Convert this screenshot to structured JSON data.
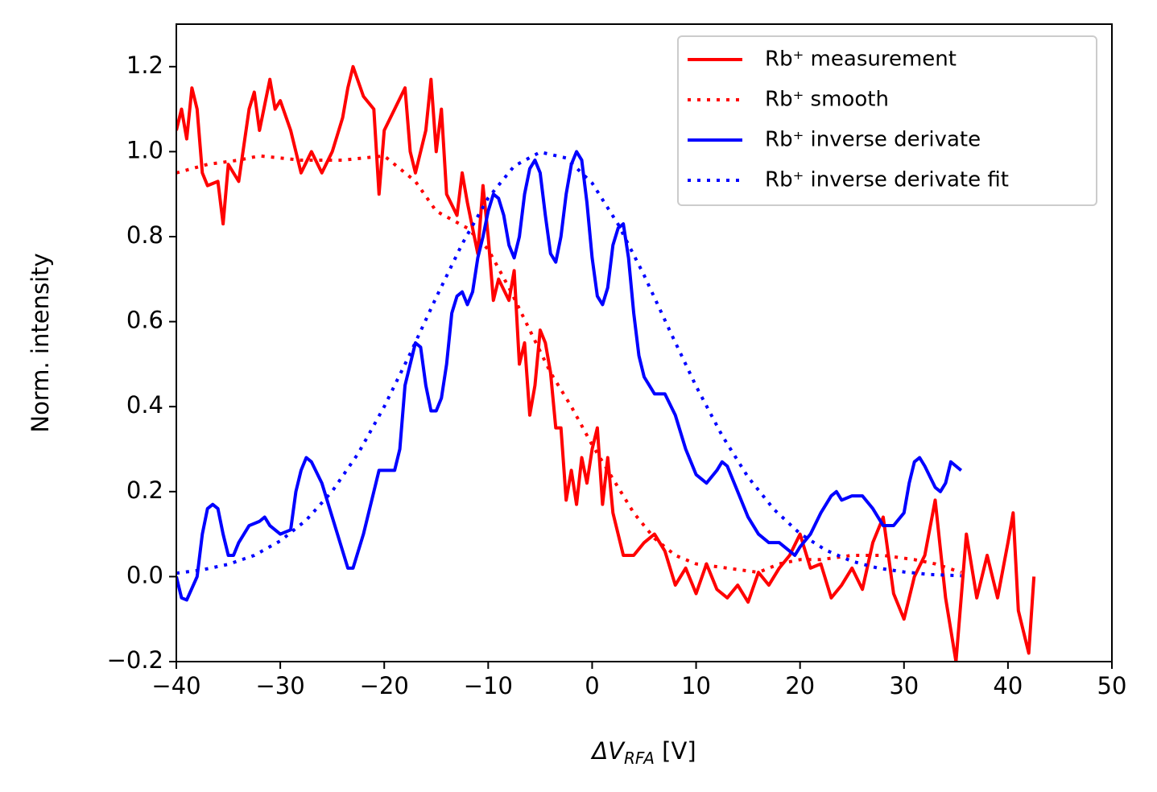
{
  "chart_data": {
    "type": "line",
    "x_label": [
      "ΔV",
      "RFA",
      " [V]"
    ],
    "y_label": "Norm. intensity",
    "xlim": [
      -40,
      50
    ],
    "ylim": [
      -0.2,
      1.3
    ],
    "xticks": [
      {
        "value": -40,
        "label": "−40"
      },
      {
        "value": -30,
        "label": "−30"
      },
      {
        "value": -20,
        "label": "−20"
      },
      {
        "value": -10,
        "label": "−10"
      },
      0,
      10,
      20,
      30,
      40,
      50
    ],
    "yticks": [
      {
        "value": -0.2,
        "label": "−0.2"
      },
      {
        "value": 0,
        "label": "0.0"
      },
      0.2,
      0.4,
      0.6,
      0.8,
      {
        "value": 1,
        "label": "1.0"
      },
      1.2
    ],
    "legend": "upper right",
    "grid": false,
    "series": [
      {
        "name": "Rb⁺ measurement",
        "color": "#ff0000",
        "linestyle": "solid",
        "x": [
          -40,
          -39.5,
          -39,
          -38.5,
          -38,
          -37.5,
          -37,
          -36,
          -35.5,
          -35,
          -34,
          -33,
          -32.5,
          -32,
          -31,
          -30.5,
          -30,
          -29,
          -28,
          -27,
          -26,
          -25,
          -24,
          -23.5,
          -23,
          -22,
          -21,
          -20.5,
          -20,
          -19,
          -18,
          -17.5,
          -17,
          -16,
          -15.5,
          -15,
          -14.5,
          -14,
          -13,
          -12.5,
          -12,
          -11,
          -10.5,
          -10,
          -9.5,
          -9,
          -8,
          -7.5,
          -7,
          -6.5,
          -6,
          -5.5,
          -5,
          -4.5,
          -4,
          -3.5,
          -3,
          -2.5,
          -2,
          -1.5,
          -1,
          -0.5,
          0,
          0.5,
          1,
          1.5,
          2,
          3,
          4,
          5,
          6,
          7,
          8,
          9,
          10,
          11,
          12,
          13,
          14,
          15,
          16,
          17,
          18,
          19,
          20,
          21,
          22,
          23,
          24,
          25,
          26,
          27,
          28,
          29,
          30,
          31,
          32,
          33,
          34,
          35,
          36,
          37,
          38,
          39,
          40,
          40.5,
          41,
          42,
          42.5
        ],
        "values": [
          1.05,
          1.1,
          1.03,
          1.15,
          1.1,
          0.95,
          0.92,
          0.93,
          0.83,
          0.97,
          0.93,
          1.1,
          1.14,
          1.05,
          1.17,
          1.1,
          1.12,
          1.05,
          0.95,
          1.0,
          0.95,
          1.0,
          1.08,
          1.15,
          1.2,
          1.13,
          1.1,
          0.9,
          1.05,
          1.1,
          1.15,
          1.0,
          0.95,
          1.05,
          1.17,
          1.0,
          1.1,
          0.9,
          0.85,
          0.95,
          0.88,
          0.76,
          0.92,
          0.8,
          0.65,
          0.7,
          0.65,
          0.72,
          0.5,
          0.55,
          0.38,
          0.45,
          0.58,
          0.55,
          0.48,
          0.35,
          0.35,
          0.18,
          0.25,
          0.17,
          0.28,
          0.22,
          0.3,
          0.35,
          0.17,
          0.28,
          0.15,
          0.05,
          0.05,
          0.08,
          0.1,
          0.06,
          -0.02,
          0.02,
          -0.04,
          0.03,
          -0.03,
          -0.05,
          -0.02,
          -0.06,
          0.01,
          -0.02,
          0.02,
          0.05,
          0.1,
          0.02,
          0.03,
          -0.05,
          -0.02,
          0.02,
          -0.03,
          0.08,
          0.14,
          -0.04,
          -0.1,
          0.0,
          0.05,
          0.18,
          -0.05,
          -0.2,
          0.1,
          -0.05,
          0.05,
          -0.05,
          0.08,
          0.15,
          -0.08,
          -0.18,
          0.0
        ]
      },
      {
        "name": "Rb⁺ smooth",
        "color": "#ff0000",
        "linestyle": "dotted",
        "x": [
          -40,
          -37,
          -34,
          -32,
          -28,
          -24,
          -20,
          -17,
          -15,
          -12,
          -10,
          -8,
          -6,
          -4,
          -2,
          0,
          2,
          4,
          6,
          8,
          10,
          13,
          16,
          18,
          20,
          22,
          25,
          28,
          31,
          33,
          35.5
        ],
        "values": [
          0.95,
          0.97,
          0.98,
          0.99,
          0.98,
          0.98,
          0.99,
          0.93,
          0.86,
          0.82,
          0.77,
          0.68,
          0.58,
          0.48,
          0.4,
          0.31,
          0.23,
          0.15,
          0.09,
          0.05,
          0.03,
          0.02,
          0.01,
          0.03,
          0.04,
          0.04,
          0.05,
          0.05,
          0.04,
          0.03,
          0.01
        ]
      },
      {
        "name": "Rb⁺ inverse derivate",
        "color": "#0000ff",
        "linestyle": "solid",
        "x": [
          -40,
          -39.5,
          -39,
          -38,
          -37.5,
          -37,
          -36.5,
          -36,
          -35.5,
          -35,
          -34.5,
          -34,
          -33,
          -32,
          -31.5,
          -31,
          -30,
          -29,
          -28.5,
          -28,
          -27.5,
          -27,
          -26,
          -25,
          -24,
          -23.5,
          -23,
          -22,
          -21,
          -20.5,
          -20,
          -19,
          -18.5,
          -18,
          -17.5,
          -17,
          -16.5,
          -16,
          -15.5,
          -15,
          -14.5,
          -14,
          -13.5,
          -13,
          -12.5,
          -12,
          -11.5,
          -11,
          -10.5,
          -10,
          -9.5,
          -9,
          -8.5,
          -8,
          -7.5,
          -7,
          -6.5,
          -6,
          -5.5,
          -5,
          -4.5,
          -4,
          -3.5,
          -3,
          -2.5,
          -2,
          -1.5,
          -1,
          -0.5,
          0,
          0.5,
          1,
          1.5,
          2,
          2.5,
          3,
          3.5,
          4,
          4.5,
          5,
          5.5,
          6,
          7,
          8,
          9,
          10,
          10.5,
          11,
          12,
          12.5,
          13,
          14,
          15,
          16,
          17,
          18,
          19,
          19.5,
          20,
          21,
          22,
          23,
          23.5,
          24,
          25,
          26,
          27,
          28,
          29,
          30,
          30.5,
          31,
          31.5,
          32,
          33,
          33.5,
          34,
          34.5,
          35,
          35.5
        ],
        "values": [
          0.0,
          -0.05,
          -0.055,
          0.0,
          0.1,
          0.16,
          0.17,
          0.16,
          0.1,
          0.05,
          0.05,
          0.08,
          0.12,
          0.13,
          0.14,
          0.12,
          0.1,
          0.11,
          0.2,
          0.25,
          0.28,
          0.27,
          0.22,
          0.14,
          0.06,
          0.02,
          0.02,
          0.1,
          0.2,
          0.25,
          0.25,
          0.25,
          0.3,
          0.45,
          0.5,
          0.55,
          0.54,
          0.45,
          0.39,
          0.39,
          0.42,
          0.5,
          0.62,
          0.66,
          0.67,
          0.64,
          0.67,
          0.75,
          0.8,
          0.86,
          0.9,
          0.89,
          0.85,
          0.78,
          0.75,
          0.8,
          0.9,
          0.96,
          0.98,
          0.95,
          0.85,
          0.76,
          0.74,
          0.8,
          0.9,
          0.97,
          1.0,
          0.98,
          0.88,
          0.75,
          0.66,
          0.64,
          0.68,
          0.78,
          0.82,
          0.83,
          0.75,
          0.62,
          0.52,
          0.47,
          0.45,
          0.43,
          0.43,
          0.38,
          0.3,
          0.24,
          0.23,
          0.22,
          0.25,
          0.27,
          0.26,
          0.2,
          0.14,
          0.1,
          0.08,
          0.08,
          0.06,
          0.05,
          0.07,
          0.1,
          0.15,
          0.19,
          0.2,
          0.18,
          0.19,
          0.19,
          0.16,
          0.12,
          0.12,
          0.15,
          0.22,
          0.27,
          0.28,
          0.26,
          0.21,
          0.2,
          0.22,
          0.27,
          0.26,
          0.25
        ]
      },
      {
        "name": "Rb⁺ inverse derivate fit",
        "color": "#0000ff",
        "linestyle": "dotted",
        "x": [
          -40,
          -37.5,
          -35,
          -32.5,
          -30,
          -27.5,
          -25,
          -22.5,
          -20,
          -17.5,
          -15,
          -12.5,
          -10,
          -7.5,
          -5,
          -2.5,
          0,
          2.5,
          5,
          7.5,
          10,
          12.5,
          15,
          17.5,
          20,
          22.5,
          25,
          27.5,
          30,
          32.5,
          35.5
        ],
        "values": [
          0.008,
          0.016,
          0.029,
          0.05,
          0.084,
          0.133,
          0.201,
          0.29,
          0.4,
          0.525,
          0.657,
          0.783,
          0.891,
          0.966,
          0.999,
          0.985,
          0.926,
          0.829,
          0.709,
          0.577,
          0.448,
          0.332,
          0.234,
          0.158,
          0.101,
          0.062,
          0.036,
          0.02,
          0.011,
          0.005,
          0.002
        ]
      }
    ]
  }
}
